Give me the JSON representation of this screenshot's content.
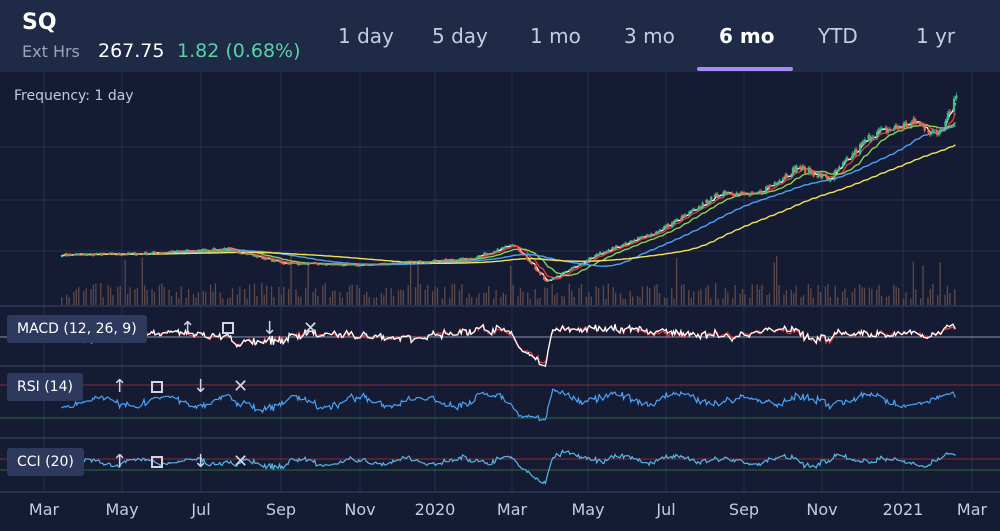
{
  "header": {
    "ticker": "SQ",
    "ext_hours_label": "Ext Hrs",
    "price": "267.75",
    "change": "1.82 (0.68%)",
    "change_color": "#59d3a6"
  },
  "tabs": [
    {
      "label": "1 day",
      "active": false
    },
    {
      "label": "5 day",
      "active": false
    },
    {
      "label": "1 mo",
      "active": false
    },
    {
      "label": "3 mo",
      "active": false
    },
    {
      "label": "6 mo",
      "active": true
    },
    {
      "label": "YTD",
      "active": false
    },
    {
      "label": "1 yr",
      "active": false
    }
  ],
  "frequency_label": "Frequency: 1 day",
  "indicators": [
    {
      "label": "MACD (12, 26, 9)",
      "icons": [
        "arrow-up-icon",
        "expand-icon",
        "arrow-down-icon",
        "close-icon"
      ]
    },
    {
      "label": "RSI (14)",
      "icons": [
        "arrow-up-icon",
        "expand-icon",
        "arrow-down-icon",
        "close-icon"
      ]
    },
    {
      "label": "CCI (20)",
      "icons": [
        "arrow-up-icon",
        "expand-icon",
        "arrow-down-icon",
        "close-icon"
      ]
    }
  ],
  "icon_glyphs": {
    "up": "↑",
    "down": "↓",
    "close": "✕"
  },
  "chart_data": {
    "type": "candlestick",
    "x_tick_labels": [
      "Mar",
      "May",
      "Jul",
      "Sep",
      "Nov",
      "2020",
      "Mar",
      "May",
      "Jul",
      "Sep",
      "Nov",
      "2021",
      "Mar"
    ],
    "price_series_keypoints": [
      {
        "date": "2019-02-15",
        "close": 73
      },
      {
        "date": "2019-04-15",
        "close": 74
      },
      {
        "date": "2019-07-01",
        "close": 80
      },
      {
        "date": "2019-08-15",
        "close": 63
      },
      {
        "date": "2019-10-15",
        "close": 60
      },
      {
        "date": "2020-01-15",
        "close": 68
      },
      {
        "date": "2020-02-20",
        "close": 85
      },
      {
        "date": "2020-03-18",
        "close": 40
      },
      {
        "date": "2020-05-01",
        "close": 75
      },
      {
        "date": "2020-06-15",
        "close": 100
      },
      {
        "date": "2020-07-15",
        "close": 125
      },
      {
        "date": "2020-08-10",
        "close": 150
      },
      {
        "date": "2020-09-05",
        "close": 145
      },
      {
        "date": "2020-10-10",
        "close": 180
      },
      {
        "date": "2020-11-05",
        "close": 165
      },
      {
        "date": "2020-12-10",
        "close": 220
      },
      {
        "date": "2021-01-15",
        "close": 235
      },
      {
        "date": "2021-02-01",
        "close": 218
      },
      {
        "date": "2021-02-17",
        "close": 268
      }
    ],
    "moving_averages": [
      {
        "color": "#ffffff"
      },
      {
        "color": "#e23b3b"
      },
      {
        "color": "#8fd14f"
      },
      {
        "color": "#4ba3f5"
      },
      {
        "color": "#f4e35a"
      }
    ],
    "indicator_colors": {
      "macd": "#ffffff",
      "signal": "#e23b3b",
      "rsi": "#4ba3f5",
      "cci": "#56b7e6",
      "rsi_upper": "#8a2a3a",
      "rsi_lower": "#2e6b3a"
    },
    "volume_color": "#5e4a4a",
    "up_color": "#3fbf8f",
    "down_color": "#e8684a",
    "grid": true
  }
}
